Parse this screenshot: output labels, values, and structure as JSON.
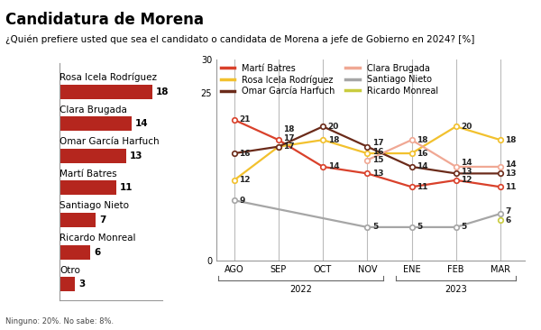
{
  "title": "Candidatura de Morena",
  "subtitle": "¿Quién prefiere usted que sea el candidato o candidata de Morena a jefe de Gobierno en 2024? [%]",
  "footnote": "Ninguno: 20%. No sabe: 8%.",
  "chart_data": [
    {
      "type": "bar",
      "orientation": "horizontal",
      "categories": [
        "Rosa Icela Rodríguez",
        "Clara Brugada",
        "Omar García Harfuch",
        "Martí Batres",
        "Santiago Nieto",
        "Ricardo Monreal",
        "Otro"
      ],
      "values": [
        18,
        14,
        13,
        11,
        7,
        6,
        3
      ],
      "color": "#b5261e",
      "xlim": [
        0,
        20
      ],
      "data_labels": true,
      "tick_labels": false
    },
    {
      "type": "line",
      "categories": [
        "AGO",
        "SEP",
        "OCT",
        "NOV",
        "ENE",
        "FEB",
        "MAR"
      ],
      "x_groups": [
        {
          "label": "2022",
          "categories": [
            "AGO",
            "SEP",
            "OCT",
            "NOV"
          ]
        },
        {
          "label": "2023",
          "categories": [
            "ENE",
            "FEB",
            "MAR"
          ]
        }
      ],
      "series": [
        {
          "name": "Martí Batres",
          "color": "#d9412b",
          "values": [
            21,
            18,
            14,
            13,
            11,
            12,
            11
          ]
        },
        {
          "name": "Rosa Icela Rodríguez",
          "color": "#f2c12e",
          "values": [
            12,
            17,
            18,
            16,
            16,
            20,
            18
          ]
        },
        {
          "name": "Omar García Harfuch",
          "color": "#6b2b1a",
          "values": [
            16,
            17,
            20,
            17,
            14,
            13,
            13
          ]
        },
        {
          "name": "Clara Brugada",
          "color": "#f0a894",
          "values": [
            null,
            null,
            null,
            15,
            18,
            14,
            14
          ]
        },
        {
          "name": "Santiago Nieto",
          "color": "#a6a6a6",
          "values": [
            9,
            null,
            null,
            5,
            5,
            5,
            7
          ]
        },
        {
          "name": "Ricardo Monreal",
          "color": "#c9cc3f",
          "values": [
            null,
            null,
            null,
            null,
            null,
            null,
            6
          ]
        }
      ],
      "ylim": [
        0,
        30
      ],
      "yticks": [
        0,
        25,
        30
      ],
      "grid": "x",
      "legend": "upper left",
      "marker": "o",
      "line_style": "solid",
      "data_labels": true
    }
  ]
}
